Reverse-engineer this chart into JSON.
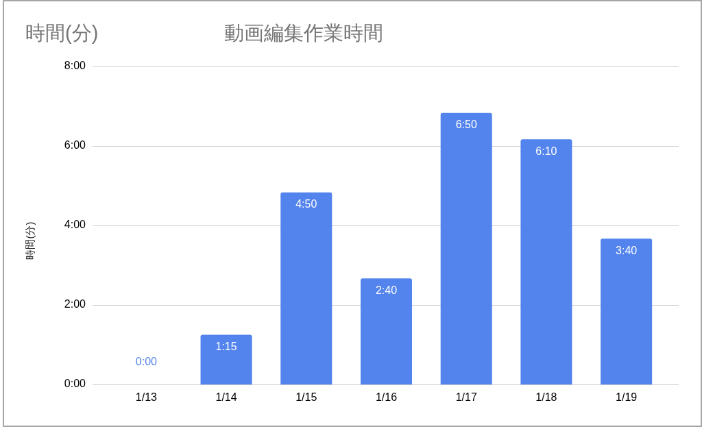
{
  "chart_data": {
    "type": "bar",
    "title": "動画編集作業時間",
    "ylabel": "時間(分)",
    "annotations": [
      "時間(分)"
    ],
    "categories": [
      "1/13",
      "1/14",
      "1/15",
      "1/16",
      "1/17",
      "1/18",
      "1/19"
    ],
    "values": [
      0,
      1.25,
      4.833,
      2.667,
      6.833,
      6.167,
      3.667
    ],
    "color": "#5383ec",
    "value_labels": [
      "0:00",
      "1:15",
      "4:50",
      "2:40",
      "6:50",
      "6:10",
      "3:40"
    ],
    "ylim": [
      0,
      8
    ],
    "yticks": [
      {
        "value": 0,
        "label": "0:00"
      },
      {
        "value": 2,
        "label": "2:00"
      },
      {
        "value": 4,
        "label": "4:00"
      },
      {
        "value": 6,
        "label": "6:00"
      },
      {
        "value": 8,
        "label": "8:00"
      }
    ],
    "grid": "y"
  }
}
